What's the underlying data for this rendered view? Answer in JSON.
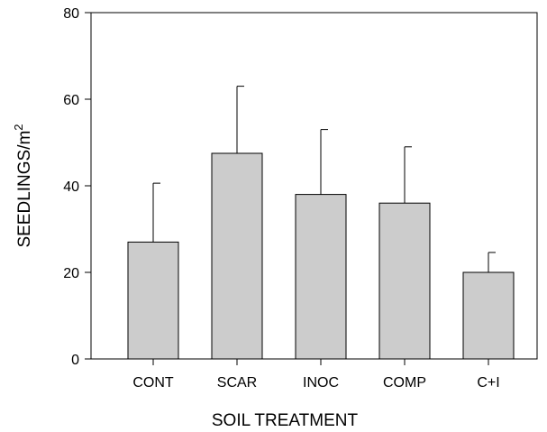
{
  "chart_data": {
    "type": "bar",
    "title": "",
    "xlabel": "SOIL TREATMENT",
    "ylabel": "SEEDLINGS/m",
    "ylabel_superscript": "2",
    "categories": [
      "CONT",
      "SCAR",
      "INOC",
      "COMP",
      "C+I"
    ],
    "values": [
      27,
      47.5,
      38,
      36,
      20
    ],
    "error_upper": [
      40.6,
      63,
      53,
      49,
      24.6
    ],
    "ylim": [
      0,
      80
    ],
    "yticks": [
      0,
      20,
      40,
      60,
      80
    ],
    "grid": false,
    "legend": "none",
    "bar_color": "#cccccc",
    "bar_edge_color": "#000000"
  }
}
